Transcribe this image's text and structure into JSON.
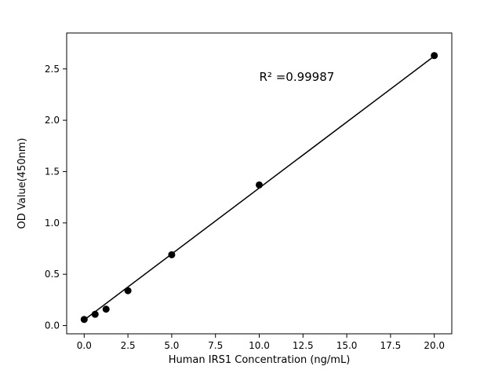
{
  "chart_data": {
    "type": "scatter",
    "title": "",
    "xlabel": "Human IRS1 Concentration (ng/mL)",
    "ylabel": "OD Value(450nm)",
    "x": [
      0,
      0.625,
      1.25,
      2.5,
      5,
      10,
      20
    ],
    "y": [
      0.06,
      0.11,
      0.16,
      0.34,
      0.69,
      1.37,
      2.63
    ],
    "fit_line": {
      "x": [
        0,
        20
      ],
      "y": [
        0.055,
        2.625
      ]
    },
    "xlim": [
      -1,
      21
    ],
    "ylim": [
      -0.08,
      2.85
    ],
    "xticks": [
      0,
      2.5,
      5,
      7.5,
      10,
      12.5,
      15,
      17.5,
      20
    ],
    "xtick_labels": [
      "0.0",
      "2.5",
      "5.0",
      "7.5",
      "10.0",
      "12.5",
      "15.0",
      "17.5",
      "20.0"
    ],
    "yticks": [
      0,
      0.5,
      1,
      1.5,
      2,
      2.5
    ],
    "ytick_labels": [
      "0.0",
      "0.5",
      "1.0",
      "1.5",
      "2.0",
      "2.5"
    ],
    "annotation": {
      "text": "R² =0.99987",
      "x": 10,
      "y": 2.42
    },
    "grid": false,
    "legend": null,
    "marker_color": "#000000",
    "line_color": "#000000",
    "background_color": "#ffffff"
  }
}
